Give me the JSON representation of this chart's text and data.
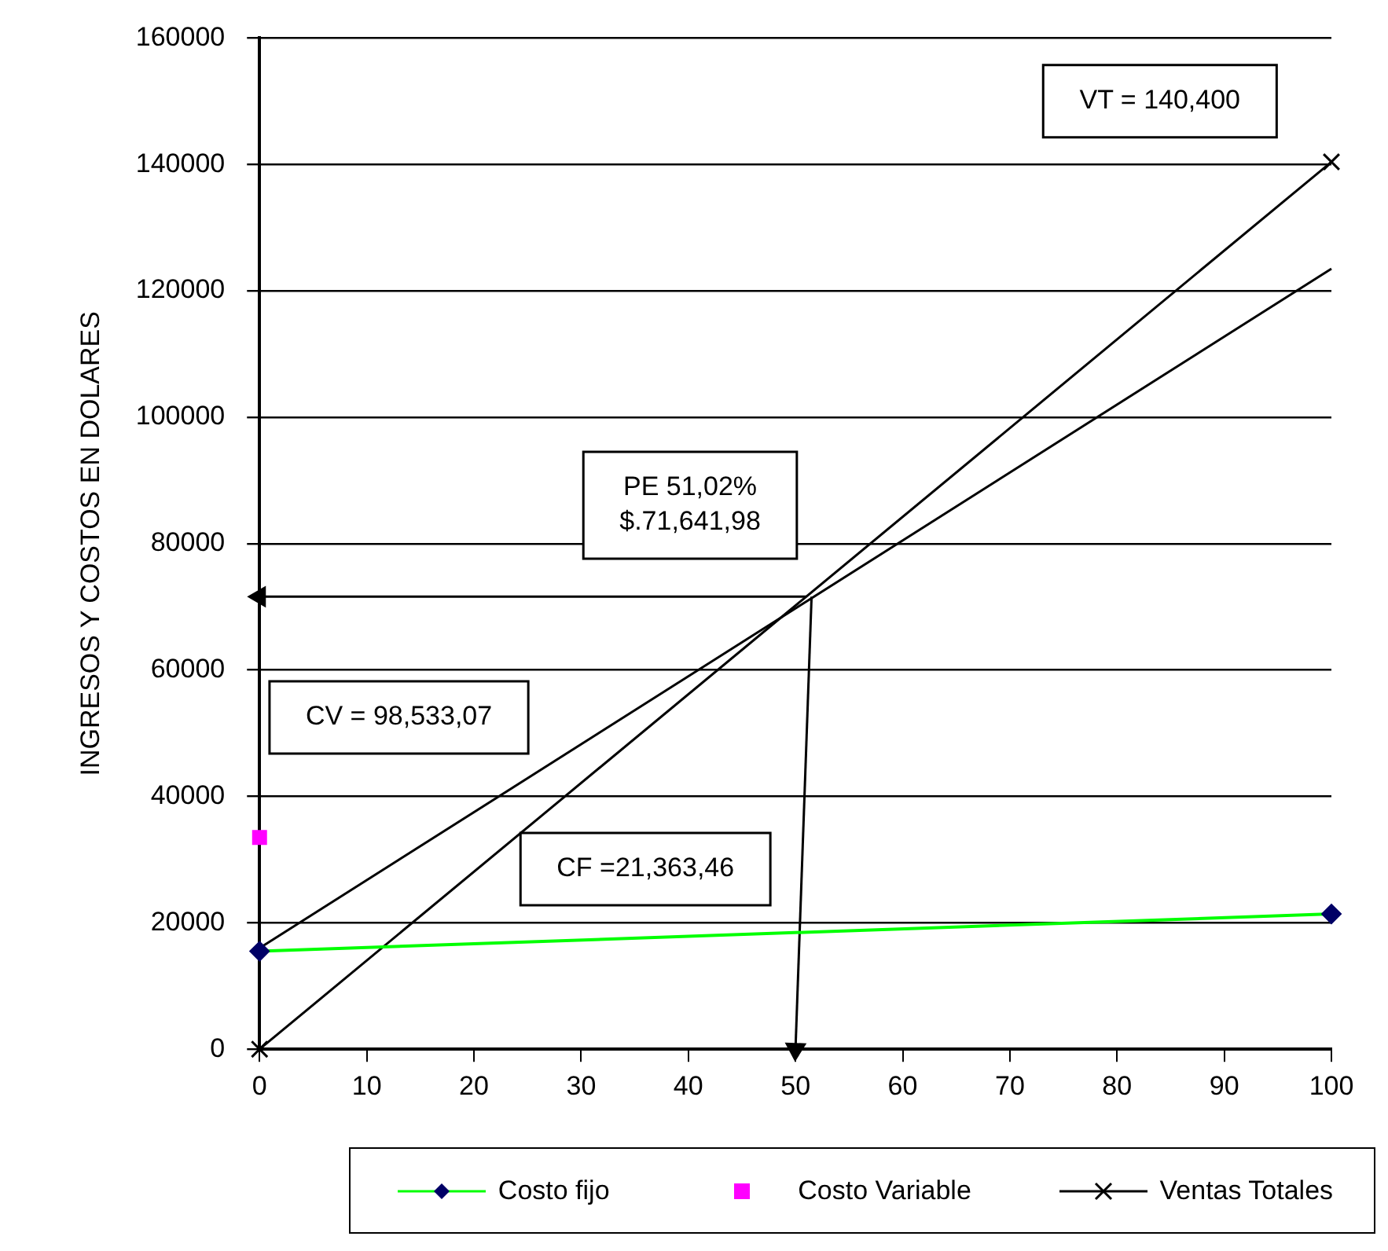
{
  "chart_data": {
    "type": "line",
    "ylabel": "INGRESOS Y COSTOS EN DOLARES",
    "xlim": [
      0,
      100
    ],
    "xticks": [
      0,
      10,
      20,
      30,
      40,
      50,
      60,
      70,
      80,
      90,
      100
    ],
    "ylim": [
      0,
      160000
    ],
    "yticks": [
      0,
      20000,
      40000,
      60000,
      80000,
      100000,
      120000,
      140000,
      160000
    ],
    "grid": "y",
    "legend": "bottom",
    "series": [
      {
        "name": "Costo fijo",
        "color": "#00ff00",
        "marker": "diamond",
        "x": [
          0,
          100
        ],
        "values": [
          15500,
          21400
        ]
      },
      {
        "name": "Costo Variable",
        "type": "scatter",
        "color": "#ff00ff",
        "marker": "square",
        "x": [
          0
        ],
        "values": [
          33500
        ]
      },
      {
        "name": "Ventas Totales",
        "color": "#000000",
        "marker": "cross",
        "x": [
          0,
          100
        ],
        "values": [
          0,
          140400
        ]
      },
      {
        "color": "#000000",
        "marker": "none",
        "x": [
          0,
          100
        ],
        "values": [
          16000,
          123500
        ]
      },
      {
        "color": "#000000",
        "marker": "triangle",
        "x": [
          51,
          0
        ],
        "values": [
          71600,
          71600
        ]
      },
      {
        "color": "#000000",
        "marker": "triangle",
        "x": [
          51.5,
          50
        ],
        "values": [
          71600,
          0
        ]
      }
    ],
    "annotations": [
      "VT = 140,400",
      {
        "text": "PE 51,02%\n$.71,641,98",
        "x": 51.02,
        "y": 71641.98
      },
      "CV = 98,533,07",
      "CF =21,363,46"
    ]
  }
}
